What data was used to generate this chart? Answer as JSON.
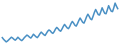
{
  "values": [
    62,
    58,
    55,
    52,
    54,
    57,
    60,
    63,
    61,
    58,
    56,
    59,
    63,
    60,
    57,
    55,
    58,
    62,
    65,
    68,
    66,
    63,
    61,
    65,
    70,
    67,
    64,
    62,
    66,
    71,
    75,
    72,
    69,
    67,
    72,
    77,
    80,
    78,
    74,
    72,
    76,
    82,
    86,
    83,
    79,
    77,
    82,
    88,
    93,
    89,
    85,
    83,
    88,
    95,
    100,
    96,
    91,
    89,
    95,
    102,
    108,
    103,
    98,
    96,
    103,
    111,
    117,
    112,
    106,
    104,
    112,
    121,
    128,
    122,
    116,
    115,
    123,
    132,
    125,
    119,
    118,
    127,
    137,
    130,
    124,
    123,
    132,
    143,
    136,
    130
  ],
  "line_color": "#4a90c4",
  "background_color": "#ffffff",
  "linewidth": 1.1
}
